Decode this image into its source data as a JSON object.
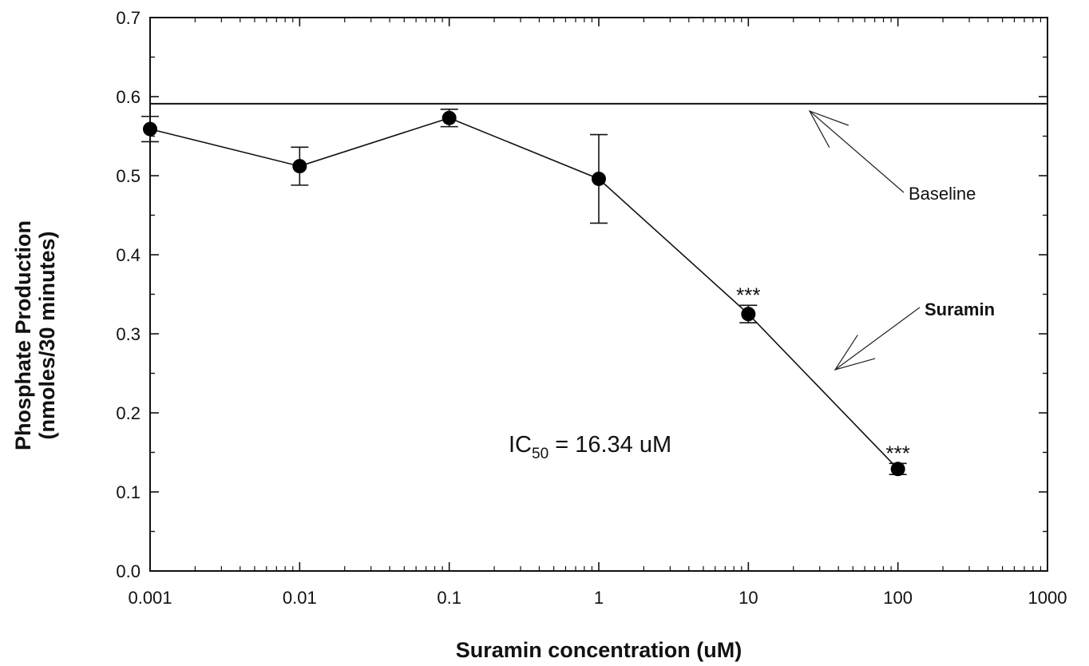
{
  "chart_data": {
    "type": "line",
    "xlabel": "Suramin concentration (uM)",
    "ylabel_line1": "Phosphate Production",
    "ylabel_line2": "(nmoles/30 minutes)",
    "xscale": "log",
    "xlim": [
      0.001,
      1000
    ],
    "ylim": [
      0.0,
      0.7
    ],
    "x_ticks": [
      0.001,
      0.01,
      0.1,
      1,
      10,
      100,
      1000
    ],
    "x_tick_labels": [
      "0.001",
      "0.01",
      "0.1",
      "1",
      "10",
      "100",
      "1000"
    ],
    "y_ticks": [
      0.0,
      0.1,
      0.2,
      0.3,
      0.4,
      0.5,
      0.6,
      0.7
    ],
    "y_tick_labels": [
      "0.0",
      "0.1",
      "0.2",
      "0.3",
      "0.4",
      "0.5",
      "0.6",
      "0.7"
    ],
    "grid": false,
    "series": [
      {
        "name": "Suramin",
        "x": [
          0.001,
          0.01,
          0.1,
          1,
          10,
          100
        ],
        "y": [
          0.559,
          0.512,
          0.573,
          0.496,
          0.325,
          0.129
        ],
        "error": [
          0.016,
          0.024,
          0.011,
          0.056,
          0.011,
          0.007
        ],
        "significance": [
          "",
          "",
          "",
          "",
          "***",
          "***"
        ]
      }
    ],
    "baseline": {
      "label": "Baseline",
      "y": 0.591
    },
    "annotations": {
      "baseline_label": "Baseline",
      "suramin_label": "Suramin",
      "ic50_prefix": "IC",
      "ic50_sub": "50",
      "ic50_value": " = 16.34 uM"
    }
  }
}
